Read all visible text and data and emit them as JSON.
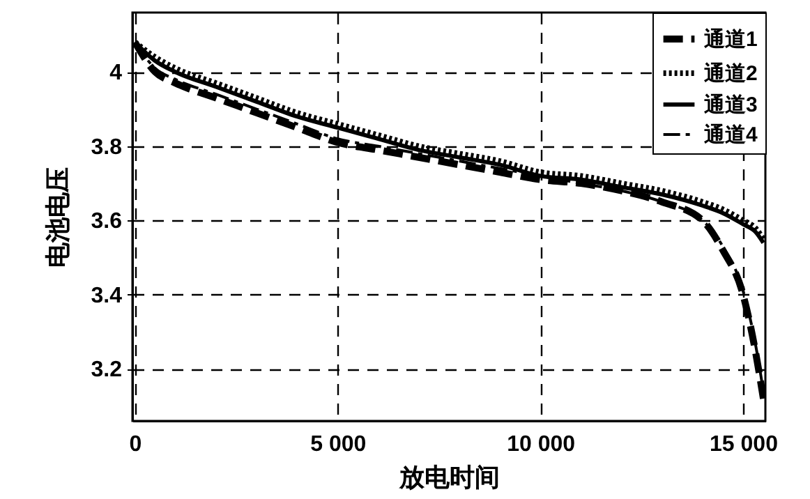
{
  "chart_data": {
    "type": "line",
    "xlabel": "放电时间",
    "ylabel": "电池电压",
    "xlim": [
      -60,
      15550
    ],
    "xticks": [
      0,
      {
        "value": 5000,
        "label": "5 000"
      },
      {
        "value": 10000,
        "label": "10 000"
      },
      {
        "value": 15000,
        "label": "15 000"
      }
    ],
    "ylim": [
      3.06,
      4.16
    ],
    "yticks": [
      3.2,
      3.4,
      3.6,
      3.8,
      4
    ],
    "grid": true,
    "legend": "top right",
    "x": [
      0,
      500,
      1000,
      2000,
      3000,
      4000,
      5000,
      6000,
      7000,
      8000,
      9000,
      10000,
      11000,
      12000,
      13000,
      14000,
      14500,
      15000,
      15300,
      15500
    ],
    "series": [
      {
        "name": "通道1",
        "color": "#000000",
        "line_style": "dashed",
        "values": [
          4.08,
          4.0,
          3.97,
          3.93,
          3.89,
          3.85,
          3.81,
          3.79,
          3.77,
          3.75,
          3.73,
          3.71,
          3.7,
          3.68,
          3.65,
          3.6,
          3.52,
          3.4,
          3.25,
          3.12
        ]
      },
      {
        "name": "通道2",
        "color": "#000000",
        "line_style": "dotted",
        "values": [
          4.08,
          4.04,
          4.01,
          3.97,
          3.93,
          3.89,
          3.86,
          3.83,
          3.8,
          3.78,
          3.76,
          3.73,
          3.72,
          3.7,
          3.68,
          3.65,
          3.63,
          3.6,
          3.58,
          3.55
        ]
      },
      {
        "name": "通道3",
        "color": "#000000",
        "line_style": "solid",
        "values": [
          4.08,
          4.03,
          4.0,
          3.96,
          3.92,
          3.88,
          3.85,
          3.82,
          3.79,
          3.77,
          3.75,
          3.72,
          3.71,
          3.69,
          3.67,
          3.64,
          3.62,
          3.59,
          3.57,
          3.54
        ]
      },
      {
        "name": "通道4",
        "color": "#000000",
        "line_style": "dashdot",
        "values": [
          4.08,
          4.01,
          3.98,
          3.94,
          3.9,
          3.86,
          3.82,
          3.8,
          3.78,
          3.76,
          3.74,
          3.72,
          3.7,
          3.68,
          3.65,
          3.6,
          3.53,
          3.41,
          3.27,
          3.14
        ]
      }
    ]
  }
}
